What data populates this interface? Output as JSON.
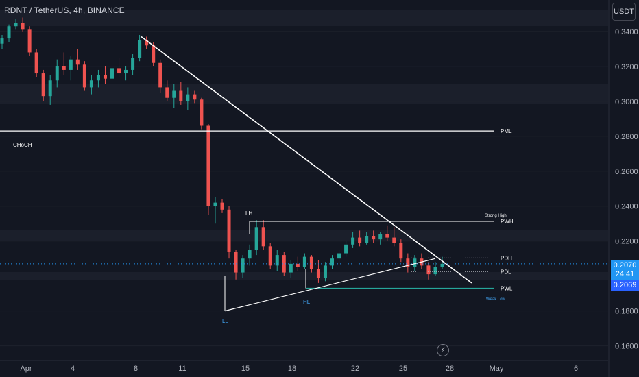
{
  "header": {
    "symbol_title": "RDNT / TetherUS, 4h, BINANCE"
  },
  "currency_button": "USDT",
  "colors": {
    "background": "#131722",
    "up": "#26a69a",
    "down": "#ef5350",
    "line": "#ffffff",
    "accent": "#2196f3",
    "bid": "#2962ff",
    "pwl_line": "#26a69a"
  },
  "price_tags": {
    "last_price": "0.2070",
    "countdown": "24:41",
    "bid_price": "0.2069"
  },
  "alert_icon": "lightning-bolt-icon",
  "chart_data": {
    "type": "candlestick",
    "x_ticks": [
      "Apr",
      "4",
      "8",
      "11",
      "15",
      "18",
      "22",
      "25",
      "28",
      "May",
      "6"
    ],
    "y_ticks": [
      "0.3400",
      "0.3200",
      "0.3000",
      "0.2800",
      "0.2600",
      "0.2400",
      "0.2200",
      "0.2000",
      "0.1800",
      "0.1600"
    ],
    "ylim": [
      0.152,
      0.358
    ],
    "levels": [
      {
        "label": "PML",
        "price": 0.283
      },
      {
        "label": "PWH",
        "price": 0.2313
      },
      {
        "label": "PDH",
        "price": 0.2103
      },
      {
        "label": "PDL",
        "price": 0.2025
      },
      {
        "label": "PWL",
        "price": 0.193
      }
    ],
    "annotations": [
      "CHoCH",
      "LH",
      "LL",
      "HL",
      "Strong High",
      "Weak Low"
    ],
    "candles": [
      {
        "o": 0.333,
        "h": 0.338,
        "l": 0.33,
        "c": 0.336
      },
      {
        "o": 0.336,
        "h": 0.344,
        "l": 0.334,
        "c": 0.343
      },
      {
        "o": 0.343,
        "h": 0.347,
        "l": 0.341,
        "c": 0.345
      },
      {
        "o": 0.345,
        "h": 0.348,
        "l": 0.34,
        "c": 0.341
      },
      {
        "o": 0.341,
        "h": 0.343,
        "l": 0.326,
        "c": 0.328
      },
      {
        "o": 0.328,
        "h": 0.33,
        "l": 0.314,
        "c": 0.316
      },
      {
        "o": 0.316,
        "h": 0.318,
        "l": 0.3,
        "c": 0.303
      },
      {
        "o": 0.303,
        "h": 0.315,
        "l": 0.298,
        "c": 0.312
      },
      {
        "o": 0.312,
        "h": 0.324,
        "l": 0.308,
        "c": 0.32
      },
      {
        "o": 0.32,
        "h": 0.328,
        "l": 0.315,
        "c": 0.318
      },
      {
        "o": 0.318,
        "h": 0.326,
        "l": 0.312,
        "c": 0.324
      },
      {
        "o": 0.324,
        "h": 0.33,
        "l": 0.318,
        "c": 0.321
      },
      {
        "o": 0.321,
        "h": 0.323,
        "l": 0.306,
        "c": 0.308
      },
      {
        "o": 0.308,
        "h": 0.315,
        "l": 0.304,
        "c": 0.312
      },
      {
        "o": 0.312,
        "h": 0.318,
        "l": 0.308,
        "c": 0.315
      },
      {
        "o": 0.315,
        "h": 0.32,
        "l": 0.31,
        "c": 0.313
      },
      {
        "o": 0.313,
        "h": 0.322,
        "l": 0.311,
        "c": 0.319
      },
      {
        "o": 0.319,
        "h": 0.325,
        "l": 0.314,
        "c": 0.316
      },
      {
        "o": 0.316,
        "h": 0.32,
        "l": 0.312,
        "c": 0.318
      },
      {
        "o": 0.318,
        "h": 0.327,
        "l": 0.315,
        "c": 0.325
      },
      {
        "o": 0.325,
        "h": 0.338,
        "l": 0.323,
        "c": 0.335
      },
      {
        "o": 0.335,
        "h": 0.337,
        "l": 0.33,
        "c": 0.332
      },
      {
        "o": 0.332,
        "h": 0.334,
        "l": 0.32,
        "c": 0.322
      },
      {
        "o": 0.322,
        "h": 0.324,
        "l": 0.305,
        "c": 0.308
      },
      {
        "o": 0.308,
        "h": 0.312,
        "l": 0.3,
        "c": 0.302
      },
      {
        "o": 0.302,
        "h": 0.31,
        "l": 0.296,
        "c": 0.306
      },
      {
        "o": 0.306,
        "h": 0.311,
        "l": 0.298,
        "c": 0.3
      },
      {
        "o": 0.3,
        "h": 0.308,
        "l": 0.295,
        "c": 0.304
      },
      {
        "o": 0.304,
        "h": 0.306,
        "l": 0.299,
        "c": 0.301
      },
      {
        "o": 0.301,
        "h": 0.302,
        "l": 0.284,
        "c": 0.286
      },
      {
        "o": 0.286,
        "h": 0.287,
        "l": 0.235,
        "c": 0.24
      },
      {
        "o": 0.24,
        "h": 0.245,
        "l": 0.23,
        "c": 0.242
      },
      {
        "o": 0.242,
        "h": 0.244,
        "l": 0.236,
        "c": 0.238
      },
      {
        "o": 0.238,
        "h": 0.24,
        "l": 0.21,
        "c": 0.214
      },
      {
        "o": 0.214,
        "h": 0.215,
        "l": 0.198,
        "c": 0.202
      },
      {
        "o": 0.202,
        "h": 0.212,
        "l": 0.199,
        "c": 0.21
      },
      {
        "o": 0.21,
        "h": 0.218,
        "l": 0.206,
        "c": 0.215
      },
      {
        "o": 0.215,
        "h": 0.232,
        "l": 0.212,
        "c": 0.228
      },
      {
        "o": 0.228,
        "h": 0.232,
        "l": 0.215,
        "c": 0.217
      },
      {
        "o": 0.217,
        "h": 0.219,
        "l": 0.204,
        "c": 0.206
      },
      {
        "o": 0.206,
        "h": 0.215,
        "l": 0.203,
        "c": 0.212
      },
      {
        "o": 0.212,
        "h": 0.214,
        "l": 0.2,
        "c": 0.202
      },
      {
        "o": 0.202,
        "h": 0.209,
        "l": 0.199,
        "c": 0.207
      },
      {
        "o": 0.207,
        "h": 0.211,
        "l": 0.203,
        "c": 0.205
      },
      {
        "o": 0.205,
        "h": 0.213,
        "l": 0.204,
        "c": 0.211
      },
      {
        "o": 0.211,
        "h": 0.212,
        "l": 0.202,
        "c": 0.204
      },
      {
        "o": 0.204,
        "h": 0.209,
        "l": 0.196,
        "c": 0.199
      },
      {
        "o": 0.199,
        "h": 0.208,
        "l": 0.197,
        "c": 0.206
      },
      {
        "o": 0.206,
        "h": 0.212,
        "l": 0.204,
        "c": 0.21
      },
      {
        "o": 0.21,
        "h": 0.215,
        "l": 0.207,
        "c": 0.213
      },
      {
        "o": 0.213,
        "h": 0.22,
        "l": 0.211,
        "c": 0.218
      },
      {
        "o": 0.218,
        "h": 0.225,
        "l": 0.216,
        "c": 0.222
      },
      {
        "o": 0.222,
        "h": 0.226,
        "l": 0.217,
        "c": 0.219
      },
      {
        "o": 0.219,
        "h": 0.225,
        "l": 0.218,
        "c": 0.223
      },
      {
        "o": 0.223,
        "h": 0.226,
        "l": 0.219,
        "c": 0.221
      },
      {
        "o": 0.221,
        "h": 0.225,
        "l": 0.218,
        "c": 0.224
      },
      {
        "o": 0.224,
        "h": 0.229,
        "l": 0.22,
        "c": 0.222
      },
      {
        "o": 0.222,
        "h": 0.228,
        "l": 0.217,
        "c": 0.219
      },
      {
        "o": 0.219,
        "h": 0.221,
        "l": 0.208,
        "c": 0.21
      },
      {
        "o": 0.21,
        "h": 0.213,
        "l": 0.202,
        "c": 0.205
      },
      {
        "o": 0.205,
        "h": 0.212,
        "l": 0.203,
        "c": 0.21
      },
      {
        "o": 0.21,
        "h": 0.213,
        "l": 0.204,
        "c": 0.206
      },
      {
        "o": 0.206,
        "h": 0.208,
        "l": 0.198,
        "c": 0.201
      },
      {
        "o": 0.201,
        "h": 0.208,
        "l": 0.2,
        "c": 0.205
      },
      {
        "o": 0.205,
        "h": 0.211,
        "l": 0.204,
        "c": 0.207
      }
    ]
  }
}
